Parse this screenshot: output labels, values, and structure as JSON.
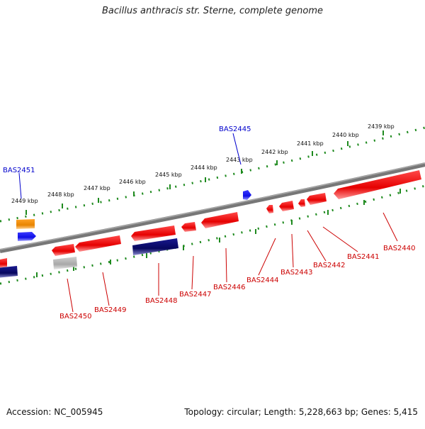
{
  "title": "Bacillus anthracis str. Sterne, complete genome",
  "footer": {
    "accession": "Accession: NC_005945",
    "summary": "Topology: circular; Length: 5,228,663 bp; Genes: 5,415"
  },
  "colors": {
    "backbone": "#7a7a7a",
    "ruler": "#1e8a1e",
    "forward_gene": "#ee1111",
    "reverse_label": "#cc0000",
    "forward_label": "#0000cc",
    "navy_gene": "#0a0a78",
    "blue_gene": "#1a1aee",
    "orange_gene": "#f08c00",
    "gray_gene": "#b4b4b4"
  },
  "ruler_labels": [
    "2449 kbp",
    "2448 kbp",
    "2447 kbp",
    "2446 kbp",
    "2445 kbp",
    "2444 kbp",
    "2443 kbp",
    "2442 kbp",
    "2441 kbp",
    "2440 kbp",
    "2439 kbp"
  ],
  "top_labels": [
    "BAS2451",
    "BAS2445"
  ],
  "bottom_labels": [
    "BAS2450",
    "BAS2449",
    "BAS2448",
    "BAS2447",
    "BAS2446",
    "BAS2444",
    "BAS2443",
    "BAS2442",
    "BAS2441",
    "BAS2440"
  ]
}
